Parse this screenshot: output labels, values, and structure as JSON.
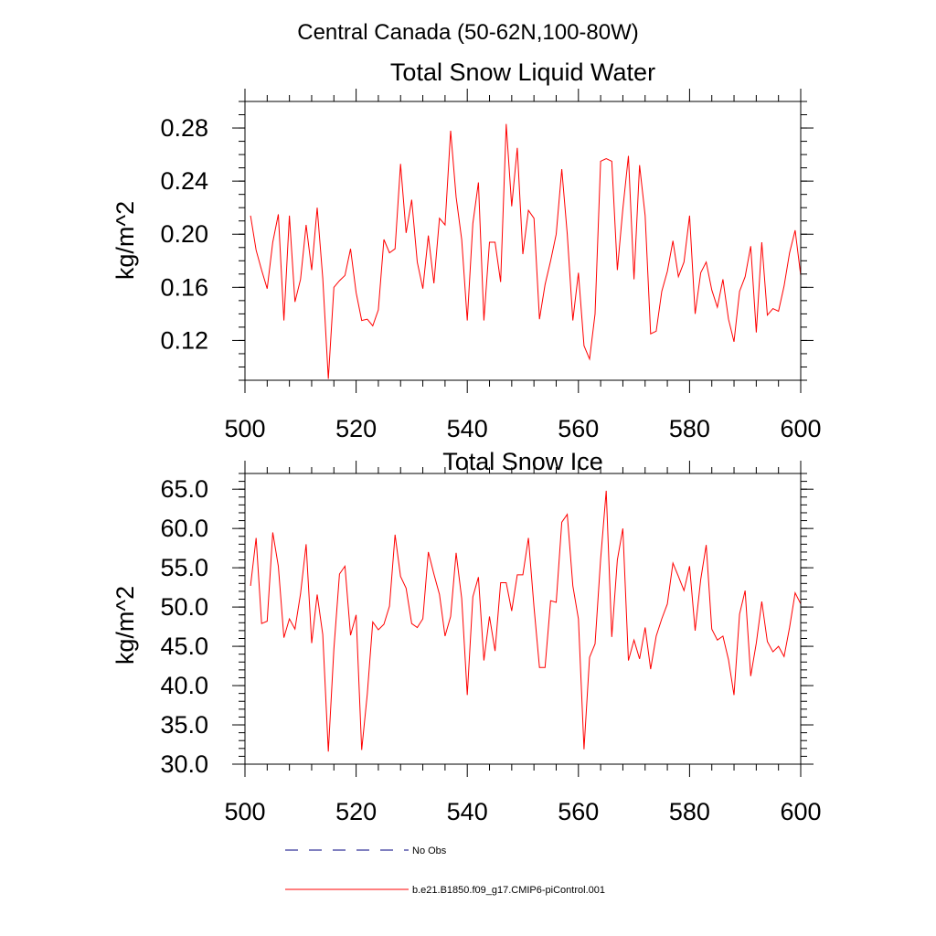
{
  "figure_title": "Central Canada (50-62N,100-80W)",
  "colors": {
    "model": "#ff0000",
    "obs": "#000080",
    "axis": "#000000"
  },
  "legend": {
    "obs_label": "No Obs",
    "model_label": "b.e21.B1850.f09_g17.CMIP6-piControl.001"
  },
  "chart_data": [
    {
      "type": "line",
      "title": "Total Snow Liquid Water",
      "ylabel": "kg/m^2",
      "xlabel": "",
      "xlim": [
        500,
        600
      ],
      "ylim": [
        0.09,
        0.3
      ],
      "xticks": [
        "500",
        "520",
        "540",
        "560",
        "580",
        "600"
      ],
      "yticks": [
        "0.12",
        "0.16",
        "0.20",
        "0.24",
        "0.28"
      ],
      "series": [
        {
          "name": "b.e21.B1850.f09_g17.CMIP6-piControl.001",
          "x_start": 501,
          "values": [
            0.214,
            0.188,
            0.173,
            0.159,
            0.194,
            0.215,
            0.135,
            0.214,
            0.149,
            0.166,
            0.207,
            0.173,
            0.22,
            0.167,
            0.091,
            0.16,
            0.165,
            0.169,
            0.189,
            0.156,
            0.135,
            0.136,
            0.131,
            0.143,
            0.196,
            0.186,
            0.189,
            0.253,
            0.201,
            0.226,
            0.179,
            0.159,
            0.199,
            0.163,
            0.212,
            0.207,
            0.278,
            0.228,
            0.196,
            0.135,
            0.208,
            0.239,
            0.135,
            0.194,
            0.194,
            0.164,
            0.283,
            0.221,
            0.265,
            0.185,
            0.218,
            0.212,
            0.136,
            0.162,
            0.18,
            0.2,
            0.249,
            0.2,
            0.135,
            0.171,
            0.116,
            0.106,
            0.14,
            0.255,
            0.257,
            0.255,
            0.173,
            0.219,
            0.259,
            0.166,
            0.252,
            0.214,
            0.125,
            0.127,
            0.157,
            0.172,
            0.195,
            0.168,
            0.179,
            0.214,
            0.14,
            0.171,
            0.179,
            0.158,
            0.145,
            0.166,
            0.136,
            0.119,
            0.157,
            0.168,
            0.191,
            0.126,
            0.194,
            0.139,
            0.144,
            0.142,
            0.161,
            0.186,
            0.203,
            0.169
          ]
        }
      ]
    },
    {
      "type": "line",
      "title": "Total Snow Ice",
      "ylabel": "kg/m^2",
      "xlabel": "",
      "xlim": [
        500,
        600
      ],
      "ylim": [
        30,
        67
      ],
      "xticks": [
        "500",
        "520",
        "540",
        "560",
        "580",
        "600"
      ],
      "yticks": [
        "30.0",
        "35.0",
        "40.0",
        "45.0",
        "50.0",
        "55.0",
        "60.0",
        "65.0"
      ],
      "series": [
        {
          "name": "b.e21.B1850.f09_g17.CMIP6-piControl.001",
          "x_start": 501,
          "values": [
            52.7,
            58.8,
            47.9,
            48.2,
            59.5,
            55.2,
            46.1,
            48.5,
            47.2,
            51.7,
            58.0,
            45.4,
            51.6,
            46.5,
            31.6,
            44.7,
            54.2,
            55.2,
            46.4,
            49.0,
            31.8,
            38.9,
            48.1,
            47.1,
            47.8,
            50.1,
            59.2,
            53.9,
            52.4,
            47.9,
            47.4,
            48.5,
            57.0,
            54.2,
            51.6,
            46.3,
            48.8,
            56.9,
            51.1,
            38.8,
            51.3,
            53.8,
            43.2,
            48.8,
            44.4,
            53.1,
            53.1,
            49.5,
            54.1,
            54.1,
            58.8,
            50.0,
            42.3,
            42.3,
            50.8,
            50.6,
            60.8,
            61.8,
            52.7,
            48.5,
            31.9,
            43.6,
            45.3,
            56.1,
            64.8,
            46.2,
            56.0,
            60.0,
            43.2,
            45.8,
            43.4,
            47.4,
            42.1,
            46.3,
            48.5,
            50.4,
            55.6,
            53.9,
            52.1,
            55.2,
            47.0,
            53.5,
            57.9,
            47.2,
            45.8,
            46.3,
            43.3,
            38.8,
            49.1,
            52.1,
            41.2,
            45.4,
            50.7,
            45.6,
            44.3,
            45.0,
            43.7,
            47.4,
            51.8,
            50.4
          ]
        }
      ]
    }
  ]
}
